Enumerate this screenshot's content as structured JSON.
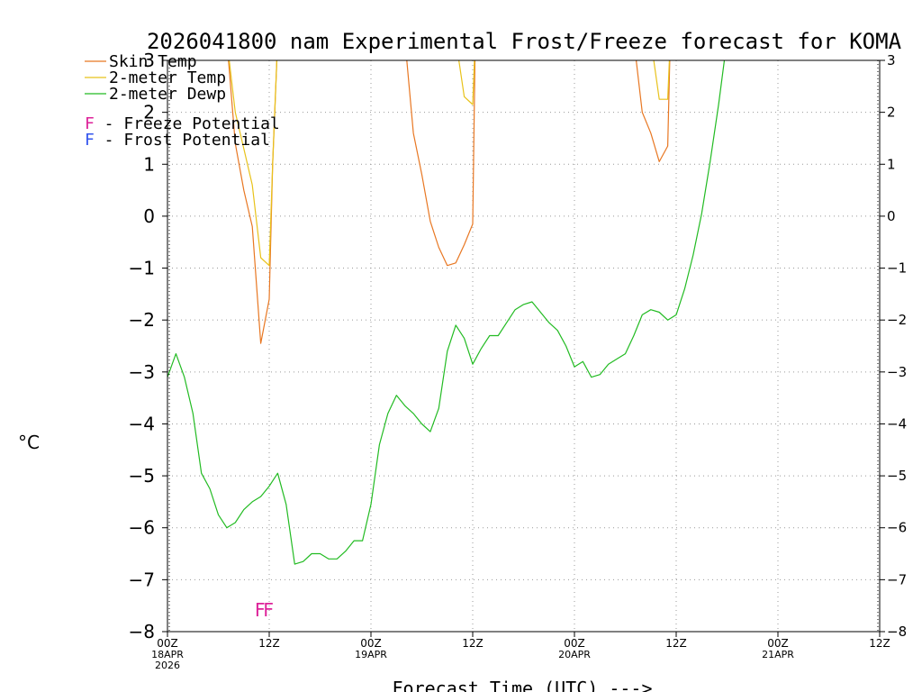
{
  "chart_data": {
    "type": "line",
    "title": "2026041800 nam Experimental Frost/Freeze forecast for KOMA",
    "ylabel": "°C",
    "xlabel": "Forecast Time (UTC) --->",
    "ylim": [
      -8,
      3
    ],
    "xlim_hours": [
      0,
      84
    ],
    "y_ticks": [
      -8,
      -7,
      -6,
      -5,
      -4,
      -3,
      -2,
      -1,
      0,
      1,
      2,
      3
    ],
    "y_tick_labels": [
      "−8",
      "−7",
      "−6",
      "−5",
      "−4",
      "−3",
      "−2",
      "−1",
      "0",
      "1",
      "2",
      "3"
    ],
    "x_ticks": [
      {
        "hour": 0,
        "label": "00Z",
        "sub1": "18APR",
        "sub2": "2026"
      },
      {
        "hour": 12,
        "label": "12Z",
        "sub1": "",
        "sub2": ""
      },
      {
        "hour": 24,
        "label": "00Z",
        "sub1": "19APR",
        "sub2": ""
      },
      {
        "hour": 36,
        "label": "12Z",
        "sub1": "",
        "sub2": ""
      },
      {
        "hour": 48,
        "label": "00Z",
        "sub1": "20APR",
        "sub2": ""
      },
      {
        "hour": 60,
        "label": "12Z",
        "sub1": "",
        "sub2": ""
      },
      {
        "hour": 72,
        "label": "00Z",
        "sub1": "21APR",
        "sub2": ""
      },
      {
        "hour": 84,
        "label": "12Z",
        "sub1": "",
        "sub2": ""
      }
    ],
    "grid": true,
    "legend": {
      "skin": "Skin Temp",
      "t2m": "2-meter Temp",
      "dewp": "2-meter Dewp",
      "freeze_letter": "F",
      "freeze_text": " - Freeze Potential",
      "frost_letter": "F",
      "frost_text": " - Frost Potential"
    },
    "colors": {
      "skin": "#e87722",
      "t2m": "#e8c21a",
      "dewp": "#22bb22",
      "freeze": "#dd2299",
      "frost": "#3355ee",
      "grid": "#999999"
    },
    "series": [
      {
        "name": "Skin Temp",
        "key": "skin",
        "segments": [
          [
            [
              7,
              3.4
            ],
            [
              8,
              1.4
            ],
            [
              9,
              0.5
            ],
            [
              10,
              -0.2
            ],
            [
              11,
              -2.45
            ],
            [
              12,
              -1.6
            ],
            [
              12.4,
              1.0
            ],
            [
              13,
              3.4
            ]
          ],
          [
            [
              28,
              3.4
            ],
            [
              29,
              1.6
            ],
            [
              30,
              0.8
            ],
            [
              31,
              -0.1
            ],
            [
              32,
              -0.6
            ],
            [
              33,
              -0.95
            ],
            [
              34,
              -0.9
            ],
            [
              35,
              -0.55
            ],
            [
              36,
              -0.15
            ],
            [
              36.3,
              3.4
            ]
          ],
          [
            [
              55,
              3.4
            ],
            [
              56,
              2.0
            ],
            [
              57,
              1.6
            ],
            [
              58,
              1.05
            ],
            [
              59,
              1.35
            ],
            [
              59.3,
              3.4
            ]
          ]
        ]
      },
      {
        "name": "2-meter Temp",
        "key": "t2m",
        "segments": [
          [
            [
              7,
              3.4
            ],
            [
              8,
              2.0
            ],
            [
              9,
              1.3
            ],
            [
              10,
              0.6
            ],
            [
              11,
              -0.8
            ],
            [
              12,
              -0.95
            ],
            [
              12.4,
              1.0
            ],
            [
              13,
              3.4
            ]
          ],
          [
            [
              34,
              3.4
            ],
            [
              35,
              2.3
            ],
            [
              36,
              2.15
            ],
            [
              36.3,
              3.4
            ]
          ],
          [
            [
              57,
              3.4
            ],
            [
              58,
              2.25
            ],
            [
              59,
              2.25
            ],
            [
              59.3,
              3.4
            ]
          ]
        ]
      },
      {
        "name": "2-meter Dewp",
        "key": "dewp",
        "segments": [
          [
            [
              0,
              -3.1
            ],
            [
              1,
              -2.65
            ],
            [
              2,
              -3.1
            ],
            [
              3,
              -3.8
            ],
            [
              4,
              -4.95
            ],
            [
              5,
              -5.25
            ],
            [
              6,
              -5.75
            ],
            [
              7,
              -6.0
            ],
            [
              8,
              -5.9
            ],
            [
              9,
              -5.65
            ],
            [
              10,
              -5.5
            ],
            [
              11,
              -5.4
            ],
            [
              12,
              -5.2
            ],
            [
              13,
              -4.95
            ],
            [
              14,
              -5.55
            ],
            [
              15,
              -6.7
            ],
            [
              16,
              -6.65
            ],
            [
              17,
              -6.5
            ],
            [
              18,
              -6.5
            ],
            [
              19,
              -6.6
            ],
            [
              20,
              -6.6
            ],
            [
              21,
              -6.45
            ],
            [
              22,
              -6.25
            ],
            [
              23,
              -6.25
            ],
            [
              24,
              -5.55
            ],
            [
              25,
              -4.4
            ],
            [
              26,
              -3.8
            ],
            [
              27,
              -3.45
            ],
            [
              28,
              -3.65
            ],
            [
              29,
              -3.8
            ],
            [
              30,
              -4.0
            ],
            [
              31,
              -4.15
            ],
            [
              32,
              -3.7
            ],
            [
              33,
              -2.6
            ],
            [
              34,
              -2.1
            ],
            [
              35,
              -2.35
            ],
            [
              36,
              -2.85
            ],
            [
              37,
              -2.55
            ],
            [
              38,
              -2.3
            ],
            [
              39,
              -2.3
            ],
            [
              40,
              -2.05
            ],
            [
              41,
              -1.8
            ],
            [
              42,
              -1.7
            ],
            [
              43,
              -1.65
            ],
            [
              44,
              -1.85
            ],
            [
              45,
              -2.05
            ],
            [
              46,
              -2.2
            ],
            [
              47,
              -2.5
            ],
            [
              48,
              -2.9
            ],
            [
              49,
              -2.8
            ],
            [
              50,
              -3.1
            ],
            [
              51,
              -3.05
            ],
            [
              52,
              -2.85
            ],
            [
              53,
              -2.75
            ],
            [
              54,
              -2.65
            ],
            [
              55,
              -2.3
            ],
            [
              56,
              -1.9
            ],
            [
              57,
              -1.8
            ],
            [
              58,
              -1.85
            ],
            [
              59,
              -2.0
            ],
            [
              60,
              -1.9
            ],
            [
              61,
              -1.4
            ],
            [
              62,
              -0.75
            ],
            [
              63,
              0.05
            ],
            [
              64,
              1.05
            ],
            [
              65,
              2.15
            ],
            [
              66,
              3.4
            ]
          ]
        ]
      }
    ],
    "markers": [
      {
        "text": "F",
        "hour": 11,
        "value": -7.55,
        "kind": "freeze"
      },
      {
        "text": "F",
        "hour": 12,
        "value": -7.55,
        "kind": "freeze"
      }
    ]
  }
}
